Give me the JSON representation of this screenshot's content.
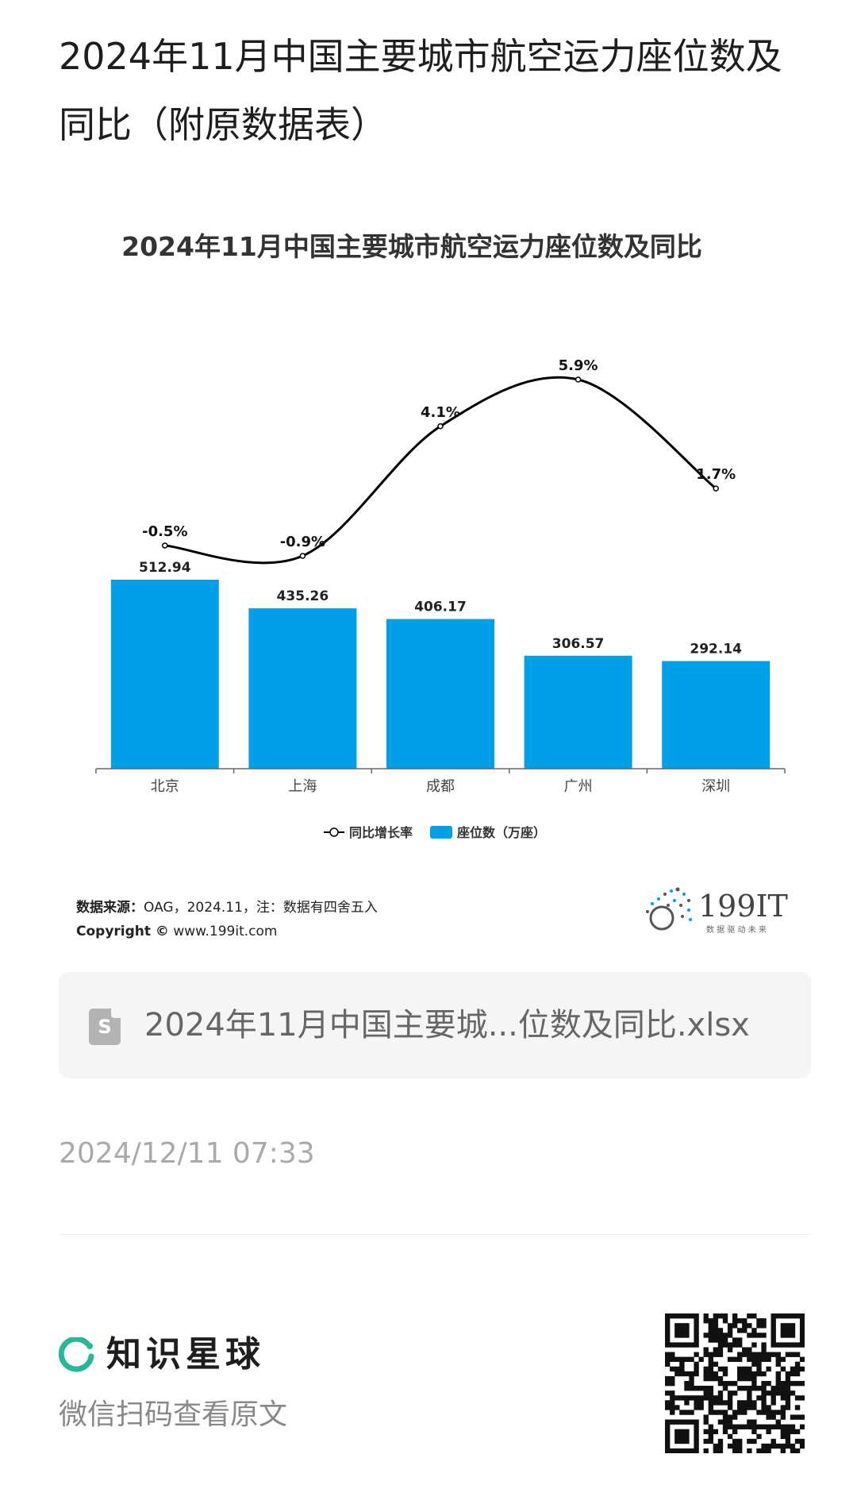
{
  "page": {
    "title": "2024年11月中国主要城市航空运力座位数及同比（附原数据表）"
  },
  "chart_data": {
    "type": "bar",
    "title": "2024年11月中国主要城市航空运力座位数及同比",
    "categories": [
      "北京",
      "上海",
      "成都",
      "广州",
      "深圳"
    ],
    "series": [
      {
        "name": "座位数（万座）",
        "type": "bar",
        "values": [
          512.94,
          435.26,
          406.17,
          306.57,
          292.14
        ],
        "labels": [
          "512.94",
          "435.26",
          "406.17",
          "306.57",
          "292.14"
        ],
        "color": "#00a0e9"
      },
      {
        "name": "同比增长率",
        "type": "line",
        "values": [
          -0.5,
          -0.9,
          4.1,
          5.9,
          1.7
        ],
        "labels": [
          "-0.5%",
          "-0.9%",
          "4.1%",
          "5.9%",
          "1.7%"
        ],
        "color": "#000000"
      }
    ],
    "legend_position": "bottom",
    "grid": false
  },
  "source": {
    "label": "数据来源：",
    "text": "OAG，2024.11，注：数据有四舍五入",
    "copyright_label": "Copyright ©",
    "copyright_site": " www.199it.com",
    "brand_name": "199IT",
    "brand_slogan": "数 据 驱 动 未 来"
  },
  "attachment": {
    "file_icon": "spreadsheet-file-icon",
    "file_icon_letter": "S",
    "file_name": "2024年11月中国主要城...位数及同比.xlsx"
  },
  "meta": {
    "timestamp": "2024/12/11 07:33"
  },
  "footer": {
    "app_name": "知识星球",
    "scan_hint": "微信扫码查看原文",
    "accent_color": "#25b89a"
  }
}
